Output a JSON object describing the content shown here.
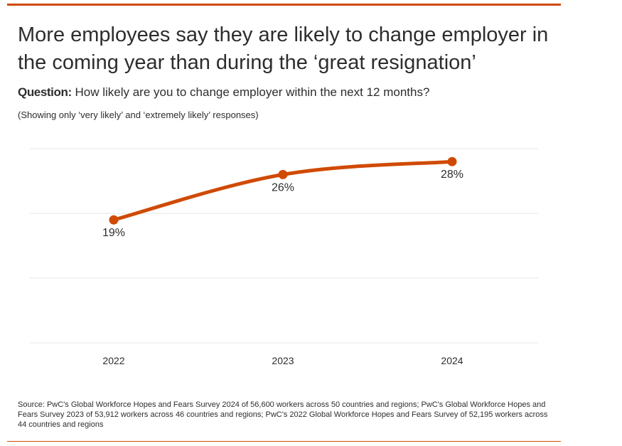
{
  "header": {
    "title": "More employees say they are likely to change employer in the coming year than during the ‘great resignation’",
    "question_label": "Question:",
    "question_text": "How likely are you to change employer within the next 12 months?",
    "note": "(Showing only ‘very likely’ and ‘extremely likely’ responses)"
  },
  "chart_data": {
    "type": "line",
    "x": [
      "2022",
      "2023",
      "2024"
    ],
    "series": [
      {
        "values": [
          19,
          26,
          28
        ],
        "labels": [
          "19%",
          "26%",
          "28%"
        ],
        "color": "#d04a02"
      }
    ],
    "ylim": [
      0,
      30
    ],
    "grid": true,
    "legend": "none"
  },
  "footer": {
    "source": "Source: PwC's Global Workforce Hopes and Fears Survey 2024 of 56,600 workers across 50 countries and regions; PwC's Global Workforce Hopes and Fears Survey 2023 of 53,912 workers across 46 countries and regions; PwC's 2022 Global Workforce Hopes and Fears Survey of 52,195 workers across 44 countries and regions"
  },
  "colors": {
    "accent": "#d04a02",
    "text": "#2d2d2d",
    "grid": "#e6e6e6"
  }
}
